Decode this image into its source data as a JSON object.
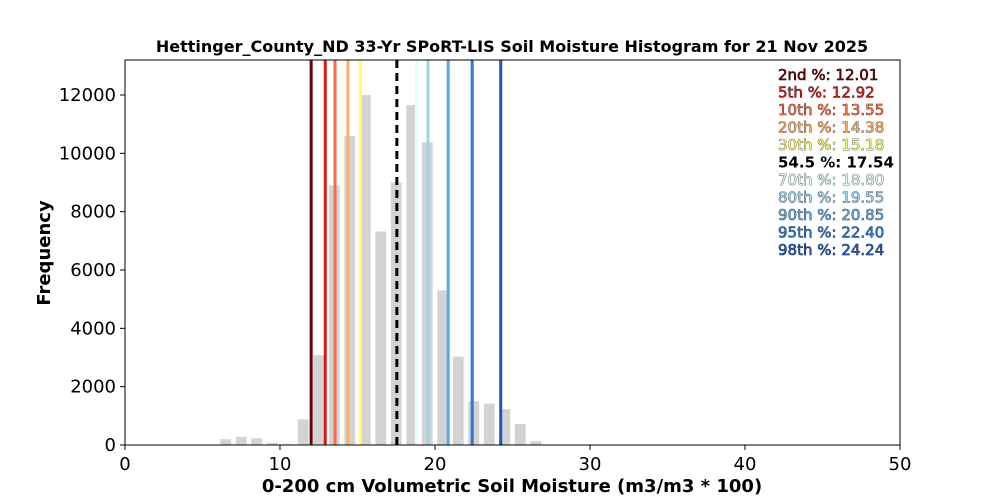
{
  "chart_data": {
    "type": "bar",
    "title": "Hettinger_County_ND 33-Yr SPoRT-LIS Soil Moisture Histogram for 21 Nov 2025",
    "xlabel": "0-200 cm Volumetric Soil Moisture (m3/m3 * 100)",
    "ylabel": "Frequency",
    "xlim": [
      0,
      50
    ],
    "ylim": [
      0,
      13200
    ],
    "xticks": [
      0,
      10,
      20,
      30,
      40,
      50
    ],
    "yticks": [
      0,
      2000,
      4000,
      6000,
      8000,
      10000,
      12000
    ],
    "bar_color": "#d3d3d3",
    "bars": [
      {
        "x": 6.5,
        "y": 200
      },
      {
        "x": 7.5,
        "y": 280
      },
      {
        "x": 8.5,
        "y": 230
      },
      {
        "x": 9.5,
        "y": 80
      },
      {
        "x": 10.5,
        "y": 30
      },
      {
        "x": 11.5,
        "y": 880
      },
      {
        "x": 12.5,
        "y": 3080
      },
      {
        "x": 13.5,
        "y": 8900
      },
      {
        "x": 14.5,
        "y": 10600
      },
      {
        "x": 15.5,
        "y": 12000
      },
      {
        "x": 16.5,
        "y": 7320
      },
      {
        "x": 17.5,
        "y": 9000
      },
      {
        "x": 18.5,
        "y": 11650
      },
      {
        "x": 19.5,
        "y": 10380
      },
      {
        "x": 20.5,
        "y": 5300
      },
      {
        "x": 21.5,
        "y": 3030
      },
      {
        "x": 22.5,
        "y": 1500
      },
      {
        "x": 23.5,
        "y": 1420
      },
      {
        "x": 24.5,
        "y": 1230
      },
      {
        "x": 25.5,
        "y": 720
      },
      {
        "x": 26.5,
        "y": 130
      }
    ],
    "percentiles": [
      {
        "label": "2nd %: 12.01",
        "value": 12.01,
        "color": "#6b0000",
        "dashed": false
      },
      {
        "label": "5th %: 12.92",
        "value": 12.92,
        "color": "#d7191c",
        "dashed": false
      },
      {
        "label": "10th %: 13.55",
        "value": 13.55,
        "color": "#f46d43",
        "dashed": false
      },
      {
        "label": "20th %: 14.38",
        "value": 14.38,
        "color": "#fdae61",
        "dashed": false
      },
      {
        "label": "30th %: 15.18",
        "value": 15.18,
        "color": "#ffff66",
        "dashed": false
      },
      {
        "label": "54.5 %: 17.54",
        "value": 17.54,
        "color": "#000000",
        "dashed": true
      },
      {
        "label": "70th %: 18.80",
        "value": 18.8,
        "color": "#e0fff8",
        "dashed": false
      },
      {
        "label": "80th %: 19.55",
        "value": 19.55,
        "color": "#9dd4f0",
        "dashed": false
      },
      {
        "label": "90th %: 20.85",
        "value": 20.85,
        "color": "#5aa8e8",
        "dashed": false
      },
      {
        "label": "95th %: 22.40",
        "value": 22.4,
        "color": "#2b78d0",
        "dashed": false
      },
      {
        "label": "98th %: 24.24",
        "value": 24.24,
        "color": "#1d58b8",
        "dashed": false
      }
    ],
    "legend_placement": "top-right"
  }
}
